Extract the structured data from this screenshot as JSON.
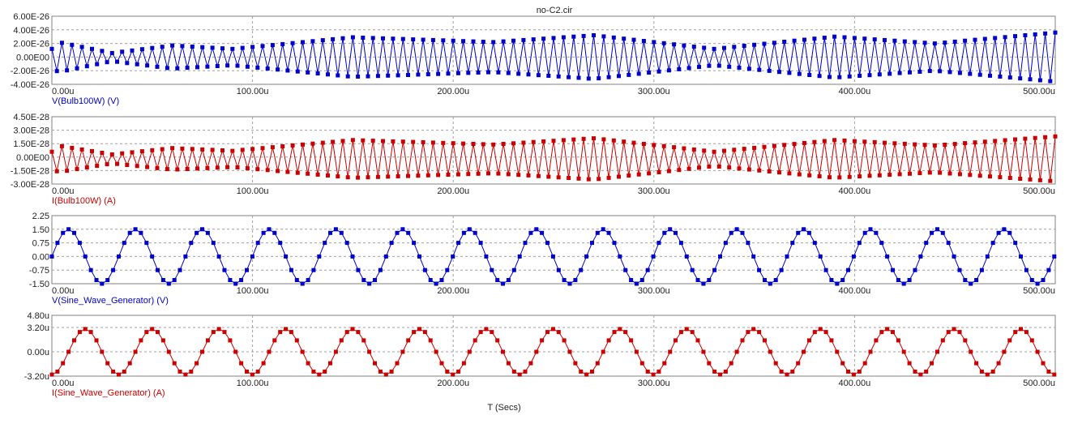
{
  "window": {
    "title": "no-C2.cir"
  },
  "x_axis": {
    "label": "T (Secs)",
    "range": [
      0,
      500
    ],
    "ticks": [
      0,
      100,
      200,
      300,
      400,
      500
    ],
    "tick_labels": [
      "0.00u",
      "100.00u",
      "200.00u",
      "300.00u",
      "400.00u",
      "500.00u"
    ]
  },
  "chart_data": [
    {
      "type": "line",
      "trace_label": "V(Bulb100W) (V)",
      "color": "#0000cc",
      "ylim": [
        -4e-26,
        6e-26
      ],
      "yticks": [
        -4e-26,
        -2e-26,
        0,
        2e-26,
        4e-26,
        6e-26
      ],
      "ytick_labels": [
        "-4.00E-26",
        "-2.00E-26",
        "0.00E00",
        "2.00E-26",
        "4.00E-26",
        "6.00E-26"
      ],
      "grid": true,
      "marker": "square",
      "amplitude_envelope": [
        [
          0,
          2.4e-26
        ],
        [
          30,
          6e-27
        ],
        [
          60,
          1.7e-26
        ],
        [
          90,
          1.2e-26
        ],
        [
          150,
          2.9e-26
        ],
        [
          220,
          2.2e-26
        ],
        [
          270,
          3.2e-26
        ],
        [
          330,
          1.2e-26
        ],
        [
          390,
          3e-26
        ],
        [
          440,
          2e-26
        ],
        [
          500,
          3.6e-26
        ]
      ],
      "offset": 0
    },
    {
      "type": "line",
      "trace_label": "I(Bulb100W) (A)",
      "color": "#cc0000",
      "ylim": [
        -3e-28,
        4.5e-28
      ],
      "yticks": [
        -3e-28,
        -1.5e-28,
        0,
        1.5e-28,
        3e-28,
        4.5e-28
      ],
      "ytick_labels": [
        "-3.00E-28",
        "-1.50E-28",
        "0.00E00",
        "1.50E-28",
        "3.00E-28",
        "4.50E-28"
      ],
      "grid": true,
      "marker": "square",
      "amplitude_envelope": [
        [
          0,
          1.6e-28
        ],
        [
          30,
          5e-29
        ],
        [
          60,
          1.2e-28
        ],
        [
          90,
          9e-29
        ],
        [
          150,
          2.1e-28
        ],
        [
          220,
          1.6e-28
        ],
        [
          270,
          2.3e-28
        ],
        [
          330,
          8e-29
        ],
        [
          390,
          2.1e-28
        ],
        [
          440,
          1.5e-28
        ],
        [
          500,
          2.5e-28
        ]
      ],
      "offset": -2e-29
    },
    {
      "type": "line",
      "trace_label": "V(Sine_Wave_Generator) (V)",
      "color": "#0000cc",
      "ylim": [
        -1.5,
        2.25
      ],
      "yticks": [
        -1.5,
        -0.75,
        0,
        0.75,
        1.5,
        2.25
      ],
      "ytick_labels": [
        "-1.50",
        "-0.75",
        "0.00",
        "0.75",
        "1.50",
        "2.25"
      ],
      "grid": true,
      "marker": "square",
      "period_us": 33.3,
      "amplitude": 1.5,
      "phase": 0
    },
    {
      "type": "line",
      "trace_label": "I(Sine_Wave_Generator) (A)",
      "color": "#cc0000",
      "ylim": [
        -3.2e-06,
        4.8e-06
      ],
      "yticks": [
        -3.2e-06,
        0,
        3.2e-06,
        4.8e-06
      ],
      "ytick_labels": [
        "-3.20u",
        "0.00u",
        "3.20u",
        "4.80u"
      ],
      "grid": true,
      "marker": "square",
      "period_us": 33.3,
      "amplitude": 3e-06,
      "phase": -1.5708
    }
  ]
}
